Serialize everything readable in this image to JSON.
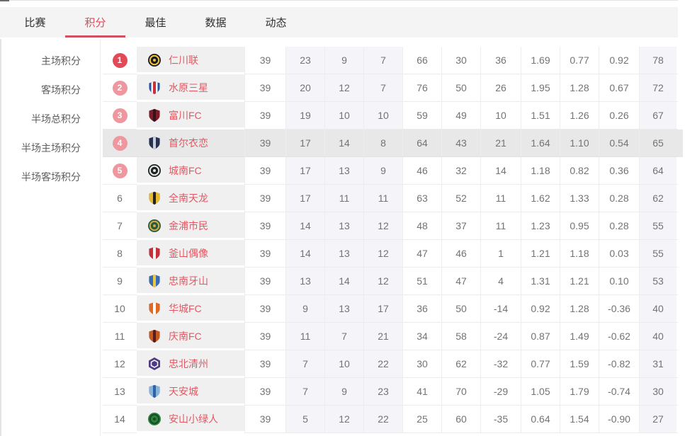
{
  "tabs": [
    {
      "label": "比赛",
      "active": false
    },
    {
      "label": "积分",
      "active": true
    },
    {
      "label": "最佳",
      "active": false
    },
    {
      "label": "数据",
      "active": false
    },
    {
      "label": "动态",
      "active": false
    }
  ],
  "sidebar": {
    "items": [
      {
        "label": "主场积分"
      },
      {
        "label": "客场积分"
      },
      {
        "label": "半场总积分"
      },
      {
        "label": "半场主场积分"
      },
      {
        "label": "半场客场积分"
      }
    ]
  },
  "colors": {
    "accent": "#dd4b5c",
    "tab_underline": "#d05260",
    "badge_rank1": "#e34a57",
    "badge_rank2_5": "#ef979e",
    "team_name_text": "#e25862",
    "row_highlight": "#e8e8e8",
    "column_tint": "#f5f5f9",
    "team_cell_bg": "#f0f0f0"
  },
  "standings": {
    "highlighted_rank": 4,
    "badge_max_rank": 5,
    "rows": [
      {
        "rank": 1,
        "team": "仁川联",
        "logo": {
          "shape": "circle",
          "colors": [
            "#1a1a22",
            "#f0c23a"
          ]
        },
        "values": [
          39,
          23,
          9,
          7,
          66,
          30,
          36,
          "1.69",
          "0.77",
          "0.92",
          78
        ]
      },
      {
        "rank": 2,
        "team": "水原三星",
        "logo": {
          "shape": "shield",
          "colors": [
            "#f5f6f8",
            "#c8303a",
            "#2456a8"
          ]
        },
        "values": [
          39,
          20,
          12,
          7,
          76,
          50,
          26,
          "1.95",
          "1.28",
          "0.67",
          72
        ]
      },
      {
        "rank": 3,
        "team": "富川FC",
        "logo": {
          "shape": "shield",
          "colors": [
            "#801b28",
            "#35131a"
          ]
        },
        "values": [
          39,
          19,
          10,
          10,
          59,
          49,
          10,
          "1.51",
          "1.26",
          "0.26",
          67
        ]
      },
      {
        "rank": 4,
        "team": "首尔衣恋",
        "logo": {
          "shape": "shield",
          "colors": [
            "#27304f",
            "#c9cfdf"
          ]
        },
        "values": [
          39,
          17,
          14,
          8,
          64,
          43,
          21,
          "1.64",
          "1.10",
          "0.54",
          65
        ]
      },
      {
        "rank": 5,
        "team": "城南FC",
        "logo": {
          "shape": "circle",
          "colors": [
            "#1d2523",
            "#e6e6e6"
          ]
        },
        "values": [
          39,
          17,
          13,
          9,
          46,
          32,
          14,
          "1.18",
          "0.82",
          "0.36",
          64
        ]
      },
      {
        "rank": 6,
        "team": "全南天龙",
        "logo": {
          "shape": "shield",
          "colors": [
            "#e6b930",
            "#222222"
          ]
        },
        "values": [
          39,
          17,
          11,
          11,
          63,
          52,
          11,
          "1.62",
          "1.33",
          "0.28",
          62
        ]
      },
      {
        "rank": 7,
        "team": "金浦市民",
        "logo": {
          "shape": "circle",
          "colors": [
            "#2a5c3c",
            "#cfa94a"
          ]
        },
        "values": [
          39,
          14,
          13,
          12,
          48,
          37,
          11,
          "1.23",
          "0.95",
          "0.28",
          55
        ]
      },
      {
        "rank": 8,
        "team": "釜山偶像",
        "logo": {
          "shape": "shield",
          "colors": [
            "#c62f38",
            "#f2f2f2"
          ]
        },
        "values": [
          39,
          14,
          13,
          12,
          47,
          46,
          1,
          "1.21",
          "1.18",
          "0.03",
          55
        ]
      },
      {
        "rank": 9,
        "team": "忠南牙山",
        "logo": {
          "shape": "shield",
          "colors": [
            "#3a6cb4",
            "#e8c94a"
          ]
        },
        "values": [
          39,
          13,
          14,
          12,
          51,
          47,
          4,
          "1.31",
          "1.21",
          "0.10",
          53
        ]
      },
      {
        "rank": 10,
        "team": "华城FC",
        "logo": {
          "shape": "shield",
          "colors": [
            "#e06a24",
            "#ffffff"
          ]
        },
        "values": [
          39,
          9,
          13,
          17,
          36,
          50,
          -14,
          "0.92",
          "1.28",
          "-0.36",
          40
        ]
      },
      {
        "rank": 11,
        "team": "庆南FC",
        "logo": {
          "shape": "shield",
          "colors": [
            "#c35a20",
            "#5c1a1a"
          ]
        },
        "values": [
          39,
          11,
          7,
          21,
          34,
          58,
          -24,
          "0.87",
          "1.49",
          "-0.62",
          40
        ]
      },
      {
        "rank": 12,
        "team": "忠北清州",
        "logo": {
          "shape": "hex",
          "colors": [
            "#4f3a86",
            "#ffffff"
          ]
        },
        "values": [
          39,
          7,
          10,
          22,
          30,
          62,
          -32,
          "0.77",
          "1.59",
          "-0.82",
          31
        ]
      },
      {
        "rank": 13,
        "team": "天安城",
        "logo": {
          "shape": "shield",
          "colors": [
            "#88b4dc",
            "#2e62a8"
          ]
        },
        "values": [
          39,
          7,
          9,
          23,
          41,
          70,
          -29,
          "1.05",
          "1.79",
          "-0.74",
          30
        ]
      },
      {
        "rank": 14,
        "team": "安山小绿人",
        "logo": {
          "shape": "circle",
          "colors": [
            "#2f7f3f",
            "#144d22"
          ]
        },
        "values": [
          39,
          5,
          12,
          22,
          25,
          60,
          -35,
          "0.64",
          "1.54",
          "-0.90",
          27
        ]
      }
    ]
  }
}
